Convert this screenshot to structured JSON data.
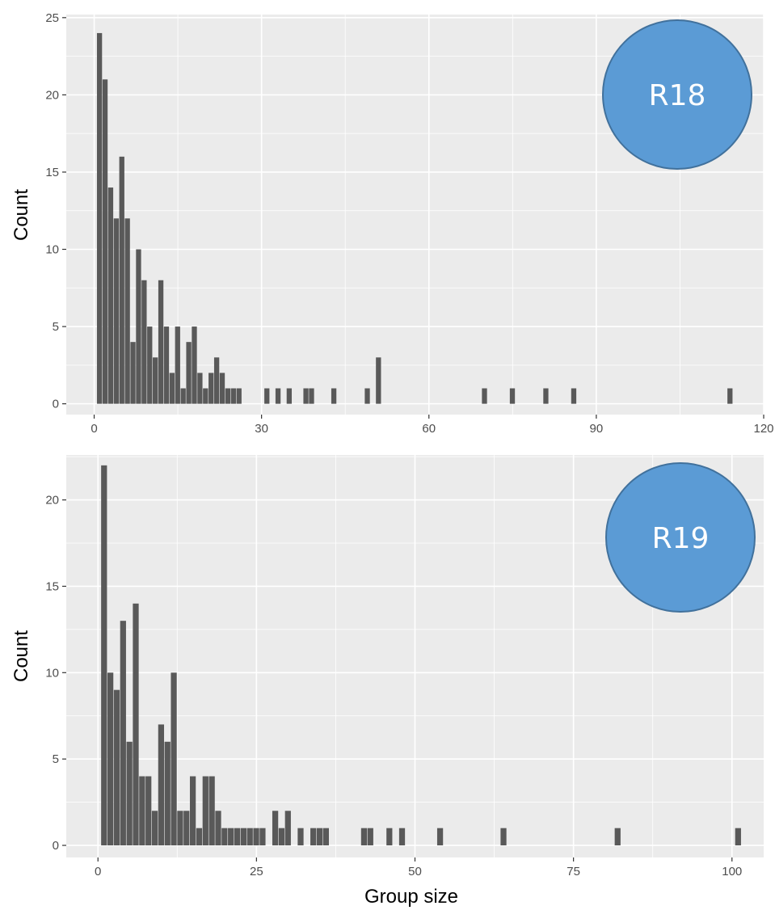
{
  "colors": {
    "panel_bg": "#ebebeb",
    "grid": "#ffffff",
    "bar": "#595959",
    "badge_fill": "#5b9bd5",
    "badge_stroke": "#41719c"
  },
  "chart_data": [
    {
      "type": "bar",
      "badge": "R18",
      "title": "",
      "xlabel": "",
      "ylabel": "Count",
      "xlim": [
        -5,
        120
      ],
      "ylim": [
        -0.7,
        25.2
      ],
      "xticks": [
        0,
        30,
        60,
        90,
        120
      ],
      "xtick_labels": [
        "0",
        "30",
        "60",
        "90",
        "120"
      ],
      "yticks": [
        0,
        5,
        10,
        15,
        20,
        25
      ],
      "ytick_labels": [
        "0",
        "5",
        "10",
        "15",
        "20",
        "25"
      ],
      "grid": true,
      "x": [
        1,
        2,
        3,
        4,
        5,
        6,
        7,
        8,
        9,
        10,
        11,
        12,
        13,
        14,
        15,
        16,
        17,
        18,
        19,
        20,
        21,
        22,
        23,
        24,
        25,
        26,
        31,
        33,
        35,
        38,
        39,
        43,
        49,
        51,
        70,
        75,
        81,
        86,
        114
      ],
      "values": [
        24,
        21,
        14,
        12,
        16,
        12,
        4,
        10,
        8,
        5,
        3,
        8,
        5,
        2,
        5,
        1,
        4,
        5,
        2,
        1,
        2,
        3,
        2,
        1,
        1,
        1,
        1,
        1,
        1,
        1,
        1,
        1,
        1,
        3,
        1,
        1,
        1,
        1,
        1
      ]
    },
    {
      "type": "bar",
      "badge": "R19",
      "title": "",
      "xlabel": "Group size",
      "ylabel": "Count",
      "xlim": [
        -5,
        105
      ],
      "ylim": [
        -0.7,
        22.6
      ],
      "xticks": [
        0,
        25,
        50,
        75,
        100
      ],
      "xtick_labels": [
        "0",
        "25",
        "50",
        "75",
        "100"
      ],
      "yticks": [
        0,
        5,
        10,
        15,
        20
      ],
      "ytick_labels": [
        "0",
        "5",
        "10",
        "15",
        "20"
      ],
      "grid": true,
      "x": [
        1,
        2,
        3,
        4,
        5,
        6,
        7,
        8,
        9,
        10,
        11,
        12,
        13,
        14,
        15,
        16,
        17,
        18,
        19,
        20,
        21,
        22,
        23,
        24,
        25,
        26,
        28,
        29,
        30,
        32,
        34,
        35,
        36,
        42,
        43,
        46,
        48,
        54,
        64,
        82,
        101
      ],
      "values": [
        22,
        10,
        9,
        13,
        6,
        14,
        4,
        4,
        2,
        7,
        6,
        10,
        2,
        2,
        4,
        1,
        4,
        4,
        2,
        1,
        1,
        1,
        1,
        1,
        1,
        1,
        2,
        1,
        2,
        1,
        1,
        1,
        1,
        1,
        1,
        1,
        1,
        1,
        1,
        1,
        1
      ]
    }
  ]
}
